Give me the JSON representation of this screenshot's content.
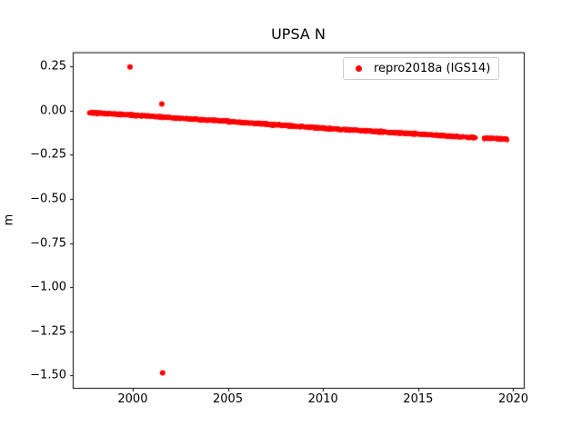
{
  "chart_data": {
    "type": "scatter",
    "title": "UPSA N",
    "xlabel": "",
    "ylabel": "m",
    "grid": false,
    "xlim": [
      1996.85,
      2020.55
    ],
    "ylim": [
      -1.57,
      0.33
    ],
    "xticks": {
      "values": [
        2000,
        2005,
        2010,
        2015,
        2020
      ],
      "labels": [
        "2000",
        "2005",
        "2010",
        "2015",
        "2020"
      ]
    },
    "yticks": {
      "values": [
        0.25,
        0.0,
        -0.25,
        -0.5,
        -0.75,
        -1.0,
        -1.25,
        -1.5
      ],
      "labels": [
        "0.25",
        "0.00",
        "−0.25",
        "−0.50",
        "−0.75",
        "−1.00",
        "−1.25",
        "−1.50"
      ]
    },
    "legend": {
      "position": "upper right",
      "entries": [
        "repro2018a (IGS14)"
      ],
      "border_color": "#cccccc"
    },
    "series": [
      {
        "name": "repro2018a (IGS14)",
        "color": "#ff0000",
        "marker": "point",
        "description": "daily position solutions, linear southward trend approx -0.007 m/yr",
        "trend_anchors": [
          [
            1997.7,
            -0.012
          ],
          [
            2000.0,
            -0.026
          ],
          [
            2005.0,
            -0.061
          ],
          [
            2010.0,
            -0.1
          ],
          [
            2015.0,
            -0.133
          ],
          [
            2018.02,
            -0.154
          ],
          [
            2018.44,
            -0.156
          ],
          [
            2019.68,
            -0.162
          ]
        ],
        "sample_interval_years": 0.01,
        "noise_amplitude": 0.009,
        "gaps": [
          [
            2017.36,
            2017.48
          ],
          [
            2018.03,
            2018.44
          ]
        ],
        "outliers": [
          [
            1999.86,
            0.247
          ],
          [
            2001.53,
            0.037
          ],
          [
            2001.57,
            -1.485
          ]
        ]
      }
    ]
  }
}
